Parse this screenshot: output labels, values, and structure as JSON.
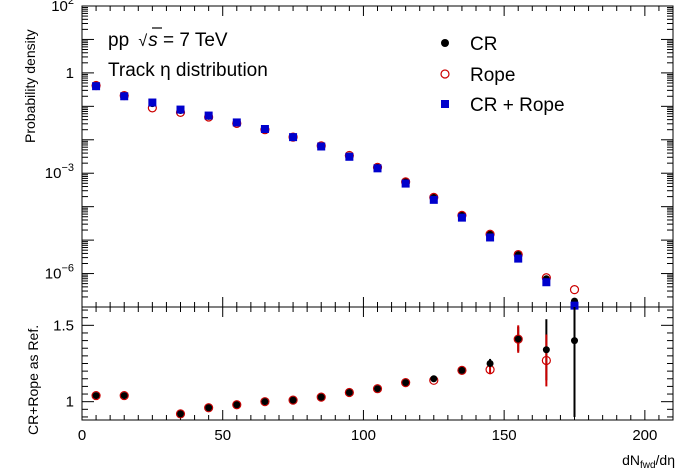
{
  "chart_data": [
    {
      "type": "scatter",
      "panel": "top",
      "ylabel": "Probability density",
      "yscale": "log",
      "ylim": [
        1e-07,
        100
      ],
      "xlim": [
        0,
        210
      ],
      "y_ticks": [
        {
          "base": "10",
          "exp": "2"
        },
        {
          "base": "1",
          "exp": ""
        },
        {
          "base": "10",
          "exp": "−3"
        },
        {
          "base": "10",
          "exp": "−6"
        }
      ],
      "annotations": {
        "energy_pre": "pp ",
        "energy_root": "s",
        "energy_post": " = 7 TeV",
        "distribution": "Track η distribution"
      },
      "series": [
        {
          "name": "CR",
          "marker": "filled-circle",
          "color": "#000000",
          "x": [
            5,
            15,
            25,
            35,
            45,
            55,
            65,
            75,
            85,
            95,
            105,
            115,
            125,
            135,
            145,
            155,
            165,
            175
          ],
          "y": [
            0.42,
            0.21,
            0.12,
            0.075,
            0.05,
            0.032,
            0.02,
            0.012,
            0.0065,
            0.0033,
            0.0015,
            0.00056,
            0.00019,
            5.8e-05,
            1.5e-05,
            3.7e-06,
            7e-07,
            1.5e-07
          ]
        },
        {
          "name": "Rope",
          "marker": "open-circle",
          "color": "#cc0000",
          "x": [
            5,
            15,
            25,
            35,
            45,
            55,
            65,
            75,
            85,
            95,
            105,
            115,
            125,
            135,
            145,
            155,
            165,
            175
          ],
          "y": [
            0.42,
            0.21,
            0.09,
            0.066,
            0.048,
            0.031,
            0.02,
            0.012,
            0.0066,
            0.0034,
            0.0015,
            0.00055,
            0.00019,
            5.5e-05,
            1.5e-05,
            3.7e-06,
            7.5e-07,
            3.3e-07
          ]
        },
        {
          "name": "CR + Rope",
          "marker": "filled-square",
          "color": "#0000cc",
          "x": [
            5,
            15,
            25,
            35,
            45,
            55,
            65,
            75,
            85,
            95,
            105,
            115,
            125,
            135,
            145,
            155,
            165,
            175
          ],
          "y": [
            0.4,
            0.2,
            0.13,
            0.08,
            0.053,
            0.033,
            0.021,
            0.012,
            0.0063,
            0.0031,
            0.0014,
            0.00049,
            0.00016,
            4.7e-05,
            1.2e-05,
            2.8e-06,
            5.5e-07,
            1.1e-07
          ]
        }
      ]
    },
    {
      "type": "scatter",
      "panel": "bottom",
      "ylabel": "CR+Rope as Ref.",
      "xlabel_pre": "dN",
      "xlabel_sub": "fwd",
      "xlabel_post": "/dη",
      "xlim": [
        0,
        210
      ],
      "ylim": [
        0.88,
        1.62
      ],
      "x_ticks": [
        0,
        50,
        100,
        150,
        200
      ],
      "y_ticks": [
        1,
        1.5
      ],
      "series": [
        {
          "name": "CR",
          "marker": "filled-circle",
          "color": "#000000",
          "x": [
            5,
            15,
            35,
            45,
            55,
            65,
            75,
            85,
            95,
            105,
            115,
            125,
            135,
            145,
            155,
            165,
            175
          ],
          "y": [
            1.04,
            1.04,
            0.92,
            0.96,
            0.98,
            1.0,
            1.01,
            1.03,
            1.06,
            1.085,
            1.125,
            1.15,
            1.205,
            1.25,
            1.41,
            1.34,
            1.4
          ],
          "err": [
            0,
            0,
            0,
            0,
            0,
            0,
            0,
            0,
            0,
            0,
            0,
            0,
            0,
            0.03,
            0.08,
            0.2,
            0.5
          ]
        },
        {
          "name": "Rope",
          "marker": "open-circle",
          "color": "#cc0000",
          "x": [
            5,
            15,
            35,
            45,
            55,
            65,
            75,
            85,
            95,
            105,
            115,
            125,
            135,
            145,
            155,
            165
          ],
          "y": [
            1.04,
            1.04,
            0.92,
            0.96,
            0.98,
            1.0,
            1.01,
            1.03,
            1.06,
            1.085,
            1.125,
            1.14,
            1.205,
            1.21,
            1.41,
            1.27
          ],
          "err": [
            0,
            0,
            0,
            0,
            0,
            0,
            0,
            0,
            0,
            0,
            0,
            0,
            0,
            0.03,
            0.09,
            0.17
          ]
        }
      ]
    }
  ]
}
